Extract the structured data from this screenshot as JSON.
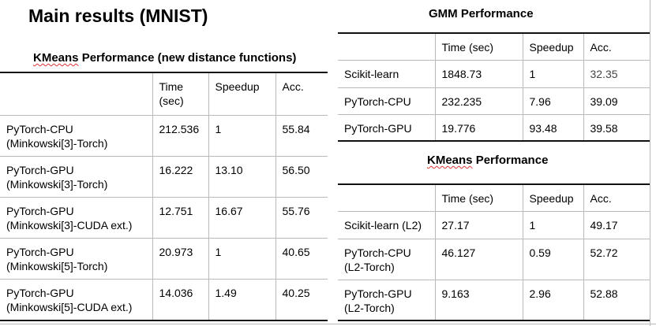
{
  "main_title": "Main results (MNIST)",
  "kmeans_new": {
    "title_prefix": "KMeans",
    "title_rest": " Performance (new distance functions)",
    "header": {
      "name": "",
      "time": "Time\n(sec)",
      "speedup": "Speedup",
      "acc": "Acc."
    },
    "rows": [
      {
        "name": "PyTorch-CPU\n(Minkowski[3]-Torch)",
        "time": "212.536",
        "speedup": "1",
        "acc": "55.84"
      },
      {
        "name": "PyTorch-GPU\n(Minkowski[3]-Torch)",
        "time": "16.222",
        "speedup": "13.10",
        "acc": "56.50"
      },
      {
        "name": "PyTorch-GPU\n(Minkowski[3]-CUDA ext.)",
        "time": "12.751",
        "speedup": "16.67",
        "acc": "55.76"
      },
      {
        "name": "PyTorch-GPU\n(Minkowski[5]-Torch)",
        "time": "20.973",
        "speedup": "1",
        "acc": "40.65"
      },
      {
        "name": "PyTorch-GPU\n(Minkowski[5]-CUDA ext.)",
        "time": "14.036",
        "speedup": "1.49",
        "acc": "40.25"
      }
    ]
  },
  "gmm": {
    "title": "GMM Performance",
    "header": {
      "name": "",
      "time": "Time (sec)",
      "speedup": "Speedup",
      "acc": "Acc."
    },
    "rows": [
      {
        "name": "Scikit-learn",
        "time": "1848.73",
        "speedup": "1",
        "acc": "32.35"
      },
      {
        "name": "PyTorch-CPU",
        "time": "232.235",
        "speedup": "7.96",
        "acc": "39.09"
      },
      {
        "name": "PyTorch-GPU",
        "time": "19.776",
        "speedup": "93.48",
        "acc": "39.58"
      }
    ]
  },
  "kmeans": {
    "title_prefix": "KMeans",
    "title_rest": " Performance",
    "header": {
      "name": "",
      "time": "Time (sec)",
      "speedup": "Speedup",
      "acc": "Acc."
    },
    "rows": [
      {
        "name": "Scikit-learn (L2)",
        "time": "27.17",
        "speedup": "1",
        "acc": "49.17"
      },
      {
        "name": "PyTorch-CPU\n(L2-Torch)",
        "time": "46.127",
        "speedup": "0.59",
        "acc": "52.72"
      },
      {
        "name": "PyTorch-GPU\n(L2-Torch)",
        "time": "9.163",
        "speedup": "2.96",
        "acc": "52.88"
      }
    ]
  },
  "colors": {
    "text": "#000000",
    "grid": "#b9b9b9",
    "rule": "#111111",
    "spellcheck": "#dd3333"
  }
}
